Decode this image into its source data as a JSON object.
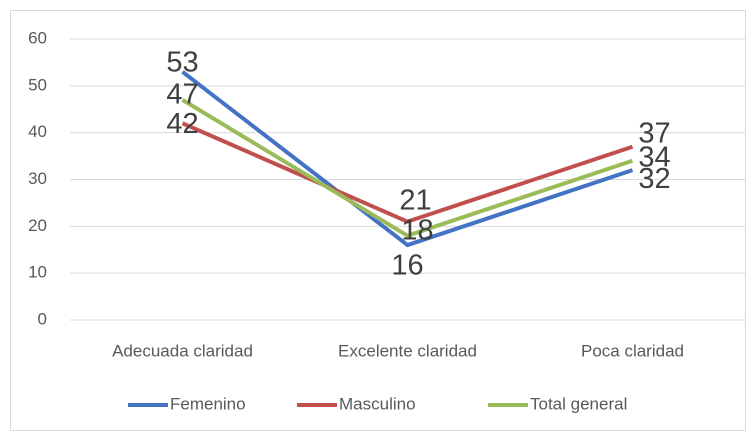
{
  "chart_data": {
    "type": "line",
    "categories": [
      "Adecuada claridad",
      "Excelente claridad",
      "Poca claridad"
    ],
    "series": [
      {
        "name": "Femenino",
        "color": "#4472c4",
        "values": [
          53,
          16,
          32
        ]
      },
      {
        "name": "Masculino",
        "color": "#c0504d",
        "values": [
          42,
          21,
          37
        ]
      },
      {
        "name": "Total general",
        "color": "#9bbb59",
        "values": [
          47,
          18,
          34
        ]
      }
    ],
    "ylim": [
      0,
      60
    ],
    "yticks": [
      0,
      10,
      20,
      30,
      40,
      50,
      60
    ],
    "grid": true,
    "legend": "bottom",
    "data_labels": true
  }
}
